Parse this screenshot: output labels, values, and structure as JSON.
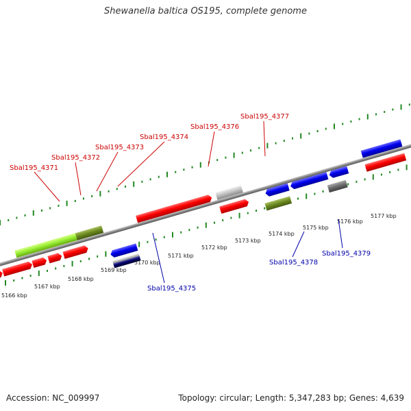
{
  "title": "Shewanella baltica OS195, complete genome",
  "footer": {
    "accession": "Accession: NC_009997",
    "summary": "Topology: circular; Length: 5,347,283 bp; Genes: 4,639"
  },
  "colors": {
    "forward_gene": "#ff0000",
    "reverse_gene": "#0000ee",
    "backbone": "#888888",
    "ticks": "#228822",
    "label_top": "#cc0000",
    "label_bottom": "#0000aa"
  },
  "scale_labels": [
    "5166 kbp",
    "5167 kbp",
    "5168 kbp",
    "5169 kbp",
    "5170 kbp",
    "5171 kbp",
    "5172 kbp",
    "5173 kbp",
    "5174 kbp",
    "5175 kbp",
    "5176 kbp",
    "5177 kbp"
  ],
  "top_labels": [
    "Sbal195_4371",
    "Sbal195_4372",
    "Sbal195_4373",
    "Sbal195_4374",
    "Sbal195_4376",
    "Sbal195_4377"
  ],
  "bottom_labels": [
    "Sbal195_4375",
    "Sbal195_4378",
    "Sbal195_4379"
  ]
}
